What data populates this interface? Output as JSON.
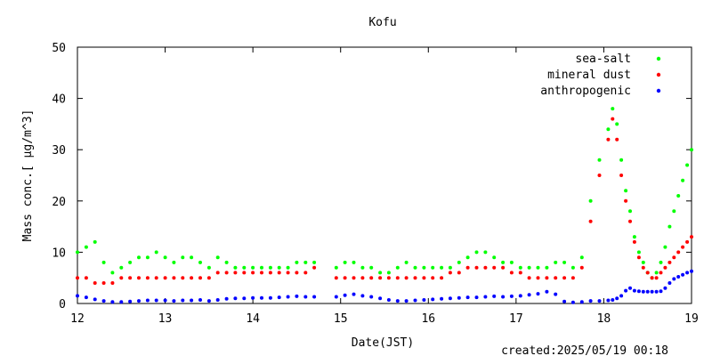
{
  "chart_data": {
    "type": "scatter",
    "title": "Kofu",
    "xlabel": "Date(JST)",
    "ylabel": "Mass conc.[ μg/m^3]",
    "xlim": [
      12,
      19
    ],
    "ylim": [
      0,
      50
    ],
    "x_ticks": [
      "12",
      "13",
      "14",
      "15",
      "16",
      "17",
      "18",
      "19"
    ],
    "y_ticks": [
      "0",
      "10",
      "20",
      "30",
      "40",
      "50"
    ],
    "grid": false,
    "legend_position": "top-right",
    "footer": "created:2025/05/19 00:18",
    "series": [
      {
        "name": "sea-salt",
        "color": "#00ff00",
        "points": [
          [
            12.0,
            10
          ],
          [
            12.1,
            11
          ],
          [
            12.2,
            12
          ],
          [
            12.3,
            8
          ],
          [
            12.4,
            6
          ],
          [
            12.5,
            7
          ],
          [
            12.6,
            8
          ],
          [
            12.7,
            9
          ],
          [
            12.8,
            9
          ],
          [
            12.9,
            10
          ],
          [
            13.0,
            9
          ],
          [
            13.1,
            8
          ],
          [
            13.2,
            9
          ],
          [
            13.3,
            9
          ],
          [
            13.4,
            8
          ],
          [
            13.5,
            7
          ],
          [
            13.6,
            9
          ],
          [
            13.7,
            8
          ],
          [
            13.8,
            7
          ],
          [
            13.9,
            7
          ],
          [
            14.0,
            7
          ],
          [
            14.1,
            7
          ],
          [
            14.2,
            7
          ],
          [
            14.3,
            7
          ],
          [
            14.4,
            7
          ],
          [
            14.5,
            8
          ],
          [
            14.6,
            8
          ],
          [
            14.7,
            8
          ],
          [
            14.95,
            7
          ],
          [
            15.05,
            8
          ],
          [
            15.15,
            8
          ],
          [
            15.25,
            7
          ],
          [
            15.35,
            7
          ],
          [
            15.45,
            6
          ],
          [
            15.55,
            6
          ],
          [
            15.65,
            7
          ],
          [
            15.75,
            8
          ],
          [
            15.85,
            7
          ],
          [
            15.95,
            7
          ],
          [
            16.05,
            7
          ],
          [
            16.15,
            7
          ],
          [
            16.25,
            7
          ],
          [
            16.35,
            8
          ],
          [
            16.45,
            9
          ],
          [
            16.55,
            10
          ],
          [
            16.65,
            10
          ],
          [
            16.75,
            9
          ],
          [
            16.85,
            8
          ],
          [
            16.95,
            8
          ],
          [
            17.05,
            7
          ],
          [
            17.15,
            7
          ],
          [
            17.25,
            7
          ],
          [
            17.35,
            7
          ],
          [
            17.45,
            8
          ],
          [
            17.55,
            8
          ],
          [
            17.65,
            7
          ],
          [
            17.75,
            9
          ],
          [
            17.85,
            20
          ],
          [
            17.95,
            28
          ],
          [
            18.05,
            34
          ],
          [
            18.1,
            38
          ],
          [
            18.15,
            35
          ],
          [
            18.2,
            28
          ],
          [
            18.25,
            22
          ],
          [
            18.3,
            18
          ],
          [
            18.35,
            13
          ],
          [
            18.4,
            10
          ],
          [
            18.45,
            8
          ],
          [
            18.5,
            6
          ],
          [
            18.55,
            5
          ],
          [
            18.6,
            6
          ],
          [
            18.65,
            8
          ],
          [
            18.7,
            11
          ],
          [
            18.75,
            15
          ],
          [
            18.8,
            18
          ],
          [
            18.85,
            21
          ],
          [
            18.9,
            24
          ],
          [
            18.95,
            27
          ],
          [
            19.0,
            30
          ]
        ]
      },
      {
        "name": "mineral dust",
        "color": "#ff0000",
        "points": [
          [
            12.0,
            5
          ],
          [
            12.1,
            5
          ],
          [
            12.2,
            4
          ],
          [
            12.3,
            4
          ],
          [
            12.4,
            4
          ],
          [
            12.5,
            5
          ],
          [
            12.6,
            5
          ],
          [
            12.7,
            5
          ],
          [
            12.8,
            5
          ],
          [
            12.9,
            5
          ],
          [
            13.0,
            5
          ],
          [
            13.1,
            5
          ],
          [
            13.2,
            5
          ],
          [
            13.3,
            5
          ],
          [
            13.4,
            5
          ],
          [
            13.5,
            5
          ],
          [
            13.6,
            6
          ],
          [
            13.7,
            6
          ],
          [
            13.8,
            6
          ],
          [
            13.9,
            6
          ],
          [
            14.0,
            6
          ],
          [
            14.1,
            6
          ],
          [
            14.2,
            6
          ],
          [
            14.3,
            6
          ],
          [
            14.4,
            6
          ],
          [
            14.5,
            6
          ],
          [
            14.6,
            6
          ],
          [
            14.7,
            7
          ],
          [
            14.95,
            5
          ],
          [
            15.05,
            5
          ],
          [
            15.15,
            5
          ],
          [
            15.25,
            5
          ],
          [
            15.35,
            5
          ],
          [
            15.45,
            5
          ],
          [
            15.55,
            5
          ],
          [
            15.65,
            5
          ],
          [
            15.75,
            5
          ],
          [
            15.85,
            5
          ],
          [
            15.95,
            5
          ],
          [
            16.05,
            5
          ],
          [
            16.15,
            5
          ],
          [
            16.25,
            6
          ],
          [
            16.35,
            6
          ],
          [
            16.45,
            7
          ],
          [
            16.55,
            7
          ],
          [
            16.65,
            7
          ],
          [
            16.75,
            7
          ],
          [
            16.85,
            7
          ],
          [
            16.95,
            6
          ],
          [
            17.05,
            6
          ],
          [
            17.15,
            5
          ],
          [
            17.25,
            5
          ],
          [
            17.35,
            5
          ],
          [
            17.45,
            5
          ],
          [
            17.55,
            5
          ],
          [
            17.65,
            5
          ],
          [
            17.75,
            7
          ],
          [
            17.85,
            16
          ],
          [
            17.95,
            25
          ],
          [
            18.05,
            32
          ],
          [
            18.1,
            36
          ],
          [
            18.15,
            32
          ],
          [
            18.2,
            25
          ],
          [
            18.25,
            20
          ],
          [
            18.3,
            16
          ],
          [
            18.35,
            12
          ],
          [
            18.4,
            9
          ],
          [
            18.45,
            7
          ],
          [
            18.5,
            6
          ],
          [
            18.55,
            5
          ],
          [
            18.6,
            5
          ],
          [
            18.65,
            6
          ],
          [
            18.7,
            7
          ],
          [
            18.75,
            8
          ],
          [
            18.8,
            9
          ],
          [
            18.85,
            10
          ],
          [
            18.9,
            11
          ],
          [
            18.95,
            12
          ],
          [
            19.0,
            13
          ]
        ]
      },
      {
        "name": "anthropogenic",
        "color": "#0000ff",
        "points": [
          [
            12.0,
            1.5
          ],
          [
            12.1,
            1.2
          ],
          [
            12.2,
            0.8
          ],
          [
            12.3,
            0.5
          ],
          [
            12.4,
            0.3
          ],
          [
            12.5,
            0.3
          ],
          [
            12.6,
            0.4
          ],
          [
            12.7,
            0.5
          ],
          [
            12.8,
            0.6
          ],
          [
            12.9,
            0.6
          ],
          [
            13.0,
            0.6
          ],
          [
            13.1,
            0.5
          ],
          [
            13.2,
            0.6
          ],
          [
            13.3,
            0.6
          ],
          [
            13.4,
            0.7
          ],
          [
            13.5,
            0.5
          ],
          [
            13.6,
            0.7
          ],
          [
            13.7,
            0.9
          ],
          [
            13.8,
            1.0
          ],
          [
            13.9,
            1.0
          ],
          [
            14.0,
            1.1
          ],
          [
            14.1,
            1.1
          ],
          [
            14.2,
            1.1
          ],
          [
            14.3,
            1.2
          ],
          [
            14.4,
            1.3
          ],
          [
            14.5,
            1.4
          ],
          [
            14.6,
            1.3
          ],
          [
            14.7,
            1.3
          ],
          [
            14.95,
            1.3
          ],
          [
            15.05,
            1.6
          ],
          [
            15.15,
            1.8
          ],
          [
            15.25,
            1.5
          ],
          [
            15.35,
            1.3
          ],
          [
            15.45,
            1.0
          ],
          [
            15.55,
            0.7
          ],
          [
            15.65,
            0.5
          ],
          [
            15.75,
            0.5
          ],
          [
            15.85,
            0.6
          ],
          [
            15.95,
            0.7
          ],
          [
            16.05,
            0.8
          ],
          [
            16.15,
            0.9
          ],
          [
            16.25,
            1.0
          ],
          [
            16.35,
            1.1
          ],
          [
            16.45,
            1.2
          ],
          [
            16.55,
            1.2
          ],
          [
            16.65,
            1.3
          ],
          [
            16.75,
            1.4
          ],
          [
            16.85,
            1.3
          ],
          [
            16.95,
            1.4
          ],
          [
            17.05,
            1.5
          ],
          [
            17.15,
            1.7
          ],
          [
            17.25,
            1.9
          ],
          [
            17.35,
            2.3
          ],
          [
            17.45,
            1.8
          ],
          [
            17.55,
            0.4
          ],
          [
            17.65,
            0.2
          ],
          [
            17.75,
            0.3
          ],
          [
            17.85,
            0.5
          ],
          [
            17.95,
            0.5
          ],
          [
            18.05,
            0.6
          ],
          [
            18.1,
            0.7
          ],
          [
            18.15,
            1.0
          ],
          [
            18.2,
            1.5
          ],
          [
            18.25,
            2.5
          ],
          [
            18.3,
            3.0
          ],
          [
            18.35,
            2.5
          ],
          [
            18.4,
            2.4
          ],
          [
            18.45,
            2.3
          ],
          [
            18.5,
            2.3
          ],
          [
            18.55,
            2.3
          ],
          [
            18.6,
            2.3
          ],
          [
            18.65,
            2.4
          ],
          [
            18.7,
            3.0
          ],
          [
            18.75,
            4.0
          ],
          [
            18.8,
            4.8
          ],
          [
            18.85,
            5.2
          ],
          [
            18.9,
            5.6
          ],
          [
            18.95,
            6.0
          ],
          [
            19.0,
            6.3
          ]
        ]
      }
    ]
  }
}
